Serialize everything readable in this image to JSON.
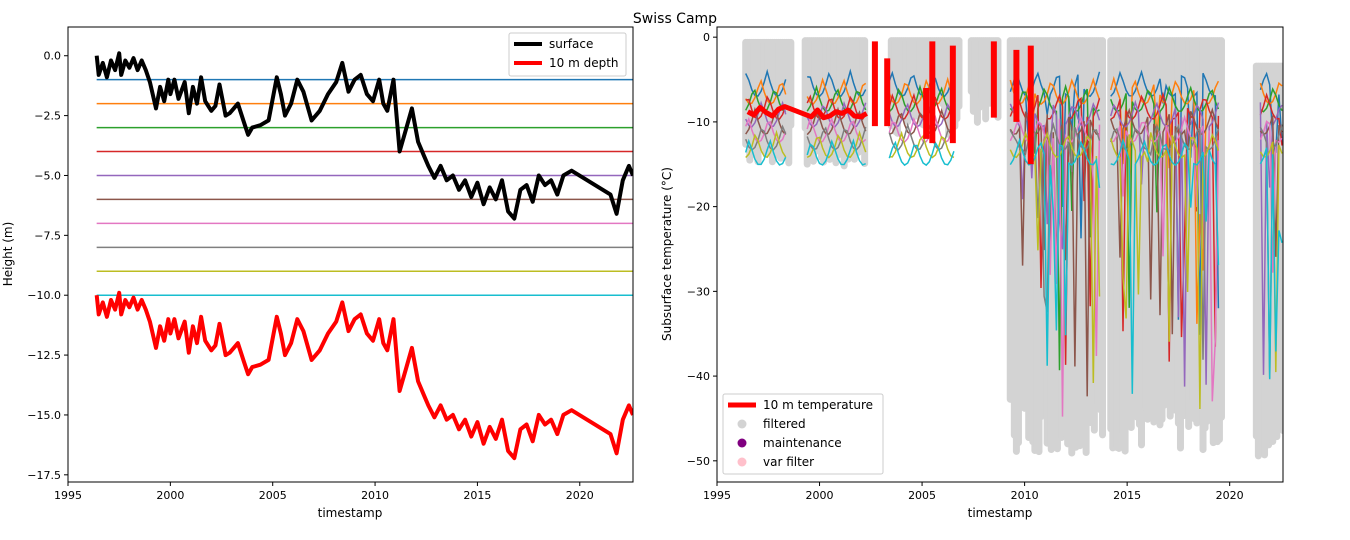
{
  "figure": {
    "suptitle": "Swiss Camp"
  },
  "chart_data": [
    {
      "type": "line",
      "title": "",
      "xlabel": "timestamp",
      "ylabel": "Height (m)",
      "xlim": [
        1995,
        2022.6
      ],
      "ylim": [
        -17.8,
        1.2
      ],
      "xticks": [
        "1995",
        "2000",
        "2005",
        "2010",
        "2015",
        "2020"
      ],
      "yticks": [
        "0.0",
        "−2.5",
        "−5.0",
        "−7.5",
        "−10.0",
        "−12.5",
        "−15.0",
        "−17.5"
      ],
      "xtick_values": [
        1995,
        2000,
        2005,
        2010,
        2015,
        2020
      ],
      "ytick_values": [
        0,
        -2.5,
        -5,
        -7.5,
        -10,
        -12.5,
        -15,
        -17.5
      ],
      "legend": {
        "placement": "top-right",
        "entries": [
          {
            "label": "surface",
            "color": "#000000"
          },
          {
            "label": "10 m depth",
            "color": "#ff0000"
          }
        ]
      },
      "sensor_depth_lines": {
        "x_range": [
          1996.4,
          2022.6
        ],
        "colors": [
          "#1f77b4",
          "#ff7f0e",
          "#2ca02c",
          "#d62728",
          "#9467bd",
          "#8c564b",
          "#e377c2",
          "#7f7f7f",
          "#bcbd22",
          "#17becf"
        ],
        "values": [
          -1,
          -2,
          -3,
          -4,
          -5,
          -6,
          -7,
          -8,
          -9,
          -10
        ]
      },
      "series": [
        {
          "name": "surface",
          "color": "#000000",
          "x": [
            1996.4,
            1996.5,
            1996.7,
            1996.9,
            1997.1,
            1997.3,
            1997.5,
            1997.6,
            1997.8,
            1998.0,
            1998.2,
            1998.4,
            1998.6,
            1998.8,
            1999.0,
            1999.3,
            1999.5,
            1999.7,
            1999.9,
            2000.0,
            2000.2,
            2000.4,
            2000.7,
            2000.9,
            2001.1,
            2001.3,
            2001.5,
            2001.7,
            2002.0,
            2002.2,
            2002.4,
            2002.7,
            2002.9,
            2003.1,
            2003.3,
            2003.6,
            2003.8,
            2004.0,
            2004.4,
            2004.8,
            2005.2,
            2005.4,
            2005.6,
            2005.9,
            2006.2,
            2006.5,
            2006.9,
            2007.3,
            2007.7,
            2008.1,
            2008.4,
            2008.7,
            2009.0,
            2009.3,
            2009.6,
            2009.9,
            2010.2,
            2010.4,
            2010.6,
            2010.9,
            2011.2,
            2011.5,
            2011.8,
            2012.1,
            2012.4,
            2012.6,
            2012.9,
            2013.2,
            2013.5,
            2013.8,
            2014.1,
            2014.4,
            2014.7,
            2015.0,
            2015.3,
            2015.6,
            2015.9,
            2016.2,
            2016.5,
            2016.8,
            2017.1,
            2017.4,
            2017.7,
            2018.0,
            2018.3,
            2018.6,
            2018.9,
            2019.2,
            2019.6,
            2021.5,
            2021.8,
            2022.1,
            2022.4,
            2022.6
          ],
          "y": [
            0.0,
            -0.8,
            -0.3,
            -0.9,
            -0.2,
            -0.6,
            0.1,
            -0.8,
            -0.2,
            -0.5,
            -0.1,
            -0.6,
            -0.2,
            -0.6,
            -1.1,
            -2.2,
            -1.3,
            -1.9,
            -1.0,
            -1.6,
            -1.0,
            -1.8,
            -1.1,
            -2.4,
            -1.3,
            -2.0,
            -0.9,
            -1.9,
            -2.3,
            -2.1,
            -1.2,
            -2.5,
            -2.4,
            -2.2,
            -2.0,
            -2.8,
            -3.3,
            -3.0,
            -2.9,
            -2.7,
            -0.9,
            -1.6,
            -2.5,
            -2.0,
            -1.0,
            -1.5,
            -2.7,
            -2.3,
            -1.6,
            -1.1,
            -0.3,
            -1.5,
            -1.0,
            -0.8,
            -1.6,
            -1.9,
            -1.0,
            -2.0,
            -2.3,
            -1.0,
            -4.0,
            -3.1,
            -2.2,
            -3.6,
            -4.2,
            -4.6,
            -5.1,
            -4.6,
            -5.2,
            -5.0,
            -5.6,
            -5.2,
            -5.9,
            -5.3,
            -6.2,
            -5.5,
            -6.0,
            -5.2,
            -6.5,
            -6.8,
            -5.6,
            -5.4,
            -6.1,
            -5.0,
            -5.4,
            -5.2,
            -5.8,
            -5.0,
            -4.8,
            -5.8,
            -6.6,
            -5.2,
            -4.6,
            -5.0
          ]
        },
        {
          "name": "10 m depth",
          "color": "#ff0000",
          "x": [
            1996.4,
            1996.5,
            1996.7,
            1996.9,
            1997.1,
            1997.3,
            1997.5,
            1997.6,
            1997.8,
            1998.0,
            1998.2,
            1998.4,
            1998.6,
            1998.8,
            1999.0,
            1999.3,
            1999.5,
            1999.7,
            1999.9,
            2000.0,
            2000.2,
            2000.4,
            2000.7,
            2000.9,
            2001.1,
            2001.3,
            2001.5,
            2001.7,
            2002.0,
            2002.2,
            2002.4,
            2002.7,
            2002.9,
            2003.1,
            2003.3,
            2003.6,
            2003.8,
            2004.0,
            2004.4,
            2004.8,
            2005.2,
            2005.4,
            2005.6,
            2005.9,
            2006.2,
            2006.5,
            2006.9,
            2007.3,
            2007.7,
            2008.1,
            2008.4,
            2008.7,
            2009.0,
            2009.3,
            2009.6,
            2009.9,
            2010.2,
            2010.4,
            2010.6,
            2010.9,
            2011.2,
            2011.5,
            2011.8,
            2012.1,
            2012.4,
            2012.6,
            2012.9,
            2013.2,
            2013.5,
            2013.8,
            2014.1,
            2014.4,
            2014.7,
            2015.0,
            2015.3,
            2015.6,
            2015.9,
            2016.2,
            2016.5,
            2016.8,
            2017.1,
            2017.4,
            2017.7,
            2018.0,
            2018.3,
            2018.6,
            2018.9,
            2019.2,
            2019.6,
            2021.5,
            2021.8,
            2022.1,
            2022.4,
            2022.6
          ],
          "y": [
            -10.0,
            -10.8,
            -10.3,
            -10.9,
            -10.2,
            -10.6,
            -9.9,
            -10.8,
            -10.2,
            -10.5,
            -10.1,
            -10.6,
            -10.2,
            -10.6,
            -11.1,
            -12.2,
            -11.3,
            -11.9,
            -11.0,
            -11.6,
            -11.0,
            -11.8,
            -11.1,
            -12.4,
            -11.3,
            -12.0,
            -10.9,
            -11.9,
            -12.3,
            -12.1,
            -11.2,
            -12.5,
            -12.4,
            -12.2,
            -12.0,
            -12.8,
            -13.3,
            -13.0,
            -12.9,
            -12.7,
            -10.9,
            -11.6,
            -12.5,
            -12.0,
            -11.0,
            -11.5,
            -12.7,
            -12.3,
            -11.6,
            -11.1,
            -10.3,
            -11.5,
            -11.0,
            -10.8,
            -11.6,
            -11.9,
            -11.0,
            -12.0,
            -12.3,
            -11.0,
            -14.0,
            -13.1,
            -12.2,
            -13.6,
            -14.2,
            -14.6,
            -15.1,
            -14.6,
            -15.2,
            -15.0,
            -15.6,
            -15.2,
            -15.9,
            -15.3,
            -16.2,
            -15.5,
            -16.0,
            -15.2,
            -16.5,
            -16.8,
            -15.6,
            -15.4,
            -16.1,
            -15.0,
            -15.4,
            -15.2,
            -15.8,
            -15.0,
            -14.8,
            -15.8,
            -16.6,
            -15.2,
            -14.6,
            -15.0
          ]
        }
      ]
    },
    {
      "type": "scatter",
      "title": "",
      "xlabel": "timestamp",
      "ylabel": "Subsurface temperature (°C)",
      "xlim": [
        1995,
        2022.6
      ],
      "ylim": [
        -52.5,
        1.2
      ],
      "xticks": [
        "1995",
        "2000",
        "2005",
        "2010",
        "2015",
        "2020"
      ],
      "yticks": [
        "0",
        "−10",
        "−20",
        "−30",
        "−40",
        "−50"
      ],
      "xtick_values": [
        1995,
        2000,
        2005,
        2010,
        2015,
        2020
      ],
      "ytick_values": [
        0,
        -10,
        -20,
        -30,
        -40,
        -50
      ],
      "legend": {
        "placement": "bottom-left",
        "entries": [
          {
            "label": "10 m temperature",
            "color": "#ff0000",
            "kind": "line"
          },
          {
            "label": "filtered",
            "color": "#d3d3d3",
            "kind": "marker"
          },
          {
            "label": "maintenance",
            "color": "#800080",
            "kind": "marker"
          },
          {
            "label": "var filter",
            "color": "#ffc0cb",
            "kind": "marker"
          }
        ]
      },
      "series": [
        {
          "name": "10 m temperature",
          "color": "#ff0000",
          "x": [
            1996.5,
            1996.8,
            1997.1,
            1997.4,
            1997.7,
            1998.0,
            1998.3,
            1999.6,
            1999.9,
            2000.2,
            2000.5,
            2000.8,
            2001.1,
            2001.4,
            2001.7,
            2002.0,
            2002.3
          ],
          "y": [
            -8.8,
            -9.2,
            -8.3,
            -8.9,
            -9.3,
            -8.5,
            -8.2,
            -9.4,
            -8.6,
            -9.5,
            -9.3,
            -8.8,
            -9.0,
            -8.6,
            -9.3,
            -9.4,
            -9.0
          ],
          "segments": [
            {
              "x": 2002.7,
              "y": [
                -0.5,
                -10.5
              ]
            },
            {
              "x": 2003.3,
              "y": [
                -2.5,
                -10.5
              ]
            },
            {
              "x": 2005.2,
              "y": [
                -6.0,
                -12.0
              ]
            },
            {
              "x": 2005.5,
              "y": [
                -0.5,
                -12.5
              ]
            },
            {
              "x": 2006.5,
              "y": [
                -1.0,
                -12.5
              ]
            },
            {
              "x": 2008.5,
              "y": [
                -0.5,
                -9.5
              ]
            },
            {
              "x": 2009.6,
              "y": [
                -1.5,
                -10.0
              ]
            },
            {
              "x": 2010.3,
              "y": [
                -1.0,
                -15.0
              ]
            }
          ]
        },
        {
          "name": "filtered",
          "color": "#d3d3d3",
          "bands": [
            {
              "x": [
                1996.4,
                1998.6
              ],
              "y": [
                -15.5,
                -0.2
              ]
            },
            {
              "x": [
                1999.3,
                2002.2
              ],
              "y": [
                -16.0,
                0.0
              ]
            },
            {
              "x": [
                2003.5,
                2006.8
              ],
              "y": [
                -12.0,
                0.0
              ]
            },
            {
              "x": [
                2007.4,
                2008.7
              ],
              "y": [
                -10.5,
                0.0
              ]
            },
            {
              "x": [
                2009.3,
                2013.8
              ],
              "y": [
                -49.5,
                0.0
              ]
            },
            {
              "x": [
                2014.2,
                2019.6
              ],
              "y": [
                -49.5,
                0.0
              ]
            },
            {
              "x": [
                2021.3,
                2022.6
              ],
              "y": [
                -50.0,
                -3.0
              ]
            }
          ]
        },
        {
          "name": "sensor traces",
          "colors": [
            "#1f77b4",
            "#ff7f0e",
            "#2ca02c",
            "#d62728",
            "#9467bd",
            "#8c564b",
            "#e377c2",
            "#7f7f7f",
            "#bcbd22",
            "#17becf"
          ]
        }
      ]
    }
  ]
}
